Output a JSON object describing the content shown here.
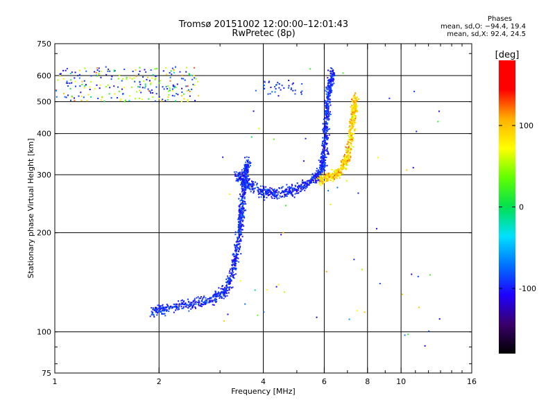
{
  "chart_data": {
    "type": "scatter",
    "title": "Tromsø 20151002 12:00:00–12:01:43",
    "subtitle": "RwPretec (8p)",
    "xlabel": "Frequency [MHz]",
    "ylabel": "Stationary phase Virtual Height [km]",
    "x_scale": "log",
    "y_scale": "log",
    "xlim": [
      1,
      16
    ],
    "ylim": [
      75,
      750
    ],
    "x_ticks": [
      1,
      2,
      4,
      6,
      8,
      10,
      16
    ],
    "y_ticks": [
      75,
      100,
      200,
      300,
      400,
      500,
      600,
      750
    ],
    "grid": true,
    "phase_info": {
      "heading": "Phases",
      "line_o": "mean, sd,O: −94.4, 19.4",
      "line_x": "mean, sd,X:  92.4, 24.5"
    },
    "colorbar": {
      "label": "[deg]",
      "ticks": [
        100,
        0,
        -100
      ],
      "range": [
        -180,
        180
      ],
      "colors": [
        "#000000",
        "#3a006b",
        "#1e00ff",
        "#0070ff",
        "#00e0ff",
        "#00e050",
        "#60ff00",
        "#ffff00",
        "#ffb000",
        "#ff0000",
        "#ff0000"
      ]
    },
    "traces": [
      {
        "name": "",
        "type": "cluster",
        "f": [
          1.0,
          2.6
        ],
        "h": [
          500,
          640
        ],
        "phase": "mixed"
      },
      {
        "name": "",
        "type": "curve",
        "points": [
          [
            1.9,
            115
          ],
          [
            2.1,
            118
          ],
          [
            2.5,
            122
          ],
          [
            2.9,
            126
          ],
          [
            3.15,
            135
          ],
          [
            3.3,
            160
          ],
          [
            3.4,
            190
          ],
          [
            3.45,
            225
          ],
          [
            3.5,
            260
          ],
          [
            3.55,
            300
          ],
          [
            3.6,
            330
          ]
        ],
        "phase": "O"
      },
      {
        "name": "",
        "type": "curve",
        "points": [
          [
            3.35,
            300
          ],
          [
            3.6,
            280
          ],
          [
            4.0,
            265
          ],
          [
            4.4,
            262
          ],
          [
            5.0,
            272
          ],
          [
            5.6,
            290
          ],
          [
            5.9,
            310
          ],
          [
            6.0,
            340
          ],
          [
            6.05,
            400
          ],
          [
            6.1,
            470
          ],
          [
            6.2,
            550
          ],
          [
            6.35,
            620
          ]
        ],
        "phase": "O"
      },
      {
        "name": "",
        "type": "curve",
        "points": [
          [
            5.8,
            290
          ],
          [
            6.3,
            295
          ],
          [
            6.7,
            310
          ],
          [
            7.0,
            340
          ],
          [
            7.2,
            400
          ],
          [
            7.3,
            470
          ],
          [
            7.4,
            520
          ]
        ],
        "phase": "X"
      },
      {
        "name": "",
        "type": "cluster",
        "f": [
          4.0,
          5.2
        ],
        "h": [
          520,
          580
        ],
        "phase": "O"
      }
    ]
  }
}
